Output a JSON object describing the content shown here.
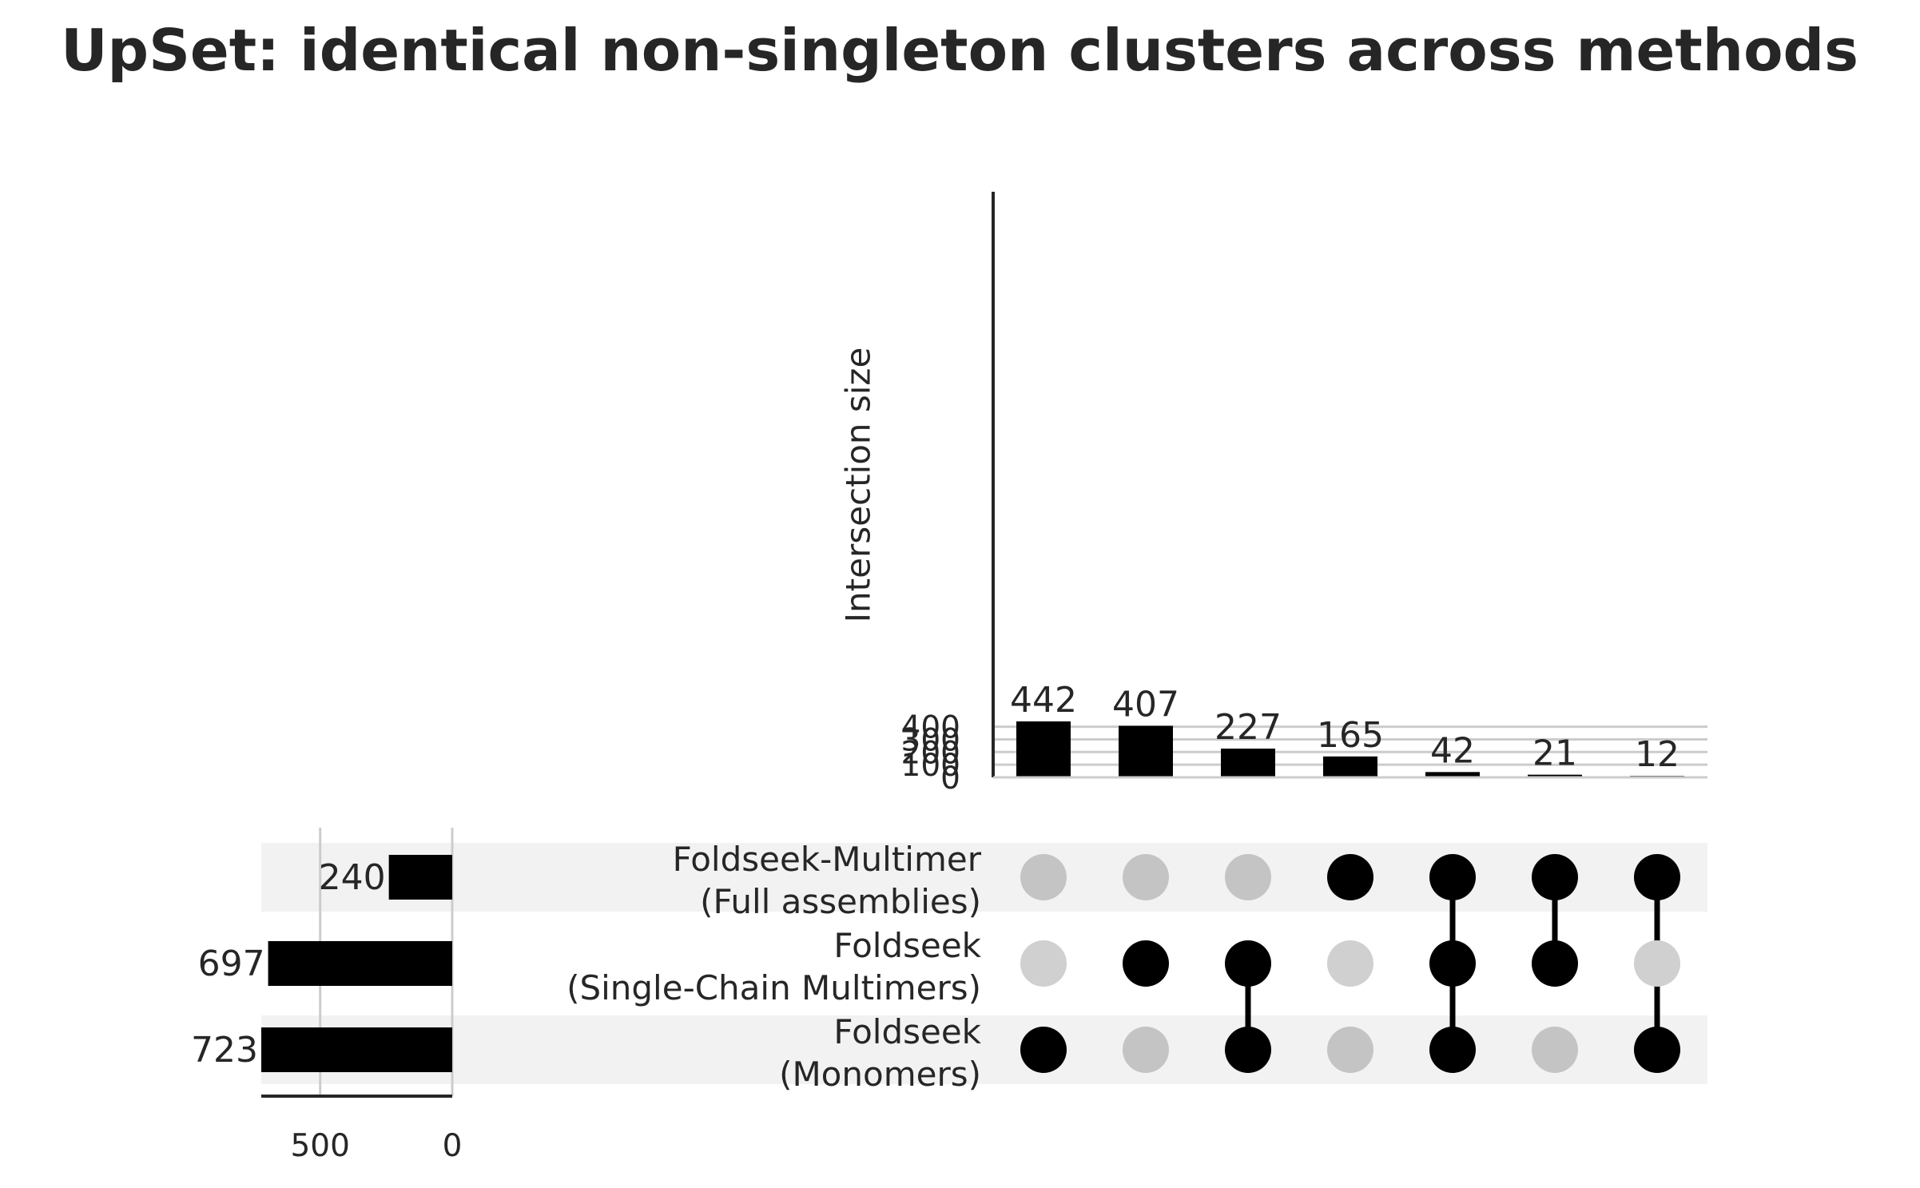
{
  "chart_data": {
    "type": "bar",
    "subtype": "upset",
    "title": "UpSet: identical non-singleton clusters across methods",
    "ylabel": "Intersection size",
    "ylim": [
      0,
      460
    ],
    "yticks": [
      "0",
      "100",
      "200",
      "300",
      "400"
    ],
    "grid": true,
    "sets": [
      {
        "line1": "Foldseek-Multimer",
        "line2": "(Full assemblies)",
        "size": 240
      },
      {
        "line1": "Foldseek",
        "line2": "(Single-Chain Multimers)",
        "size": 697
      },
      {
        "line1": "Foldseek",
        "line2": "(Monomers)",
        "size": 723
      }
    ],
    "set_size_ticks": [
      "500",
      "0"
    ],
    "set_size_xlim": [
      0,
      723
    ],
    "intersections": [
      {
        "value": 442,
        "members": [
          false,
          false,
          true
        ]
      },
      {
        "value": 407,
        "members": [
          false,
          true,
          false
        ]
      },
      {
        "value": 227,
        "members": [
          false,
          true,
          true
        ]
      },
      {
        "value": 165,
        "members": [
          true,
          false,
          false
        ]
      },
      {
        "value": 42,
        "members": [
          true,
          true,
          true
        ]
      },
      {
        "value": 21,
        "members": [
          true,
          true,
          false
        ]
      },
      {
        "value": 12,
        "members": [
          true,
          false,
          true
        ]
      }
    ],
    "colors": {
      "bar": "#000000",
      "dot_active": "#000000",
      "dot_inactive": "#c4c4c4",
      "dot_inactive_light": "#d0d0d0",
      "row_shade": "#f2f2f2",
      "grid": "#cccccc",
      "axis": "#262626"
    }
  }
}
